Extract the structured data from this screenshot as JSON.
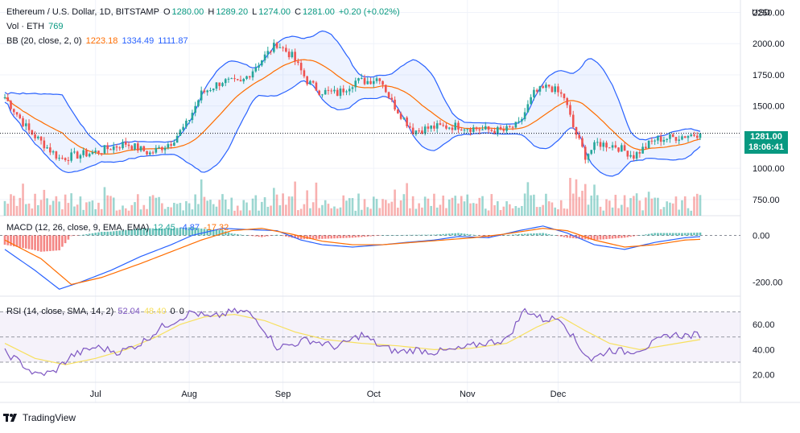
{
  "header": {
    "symbol": "Ethereum / U.S. Dollar, 1D, BITSTAMP",
    "open_label": "O",
    "open": "1280.00",
    "high_label": "H",
    "high": "1289.20",
    "low_label": "L",
    "low": "1274.00",
    "close_label": "C",
    "close": "1281.00",
    "change": "+0.20 (+0.02%)"
  },
  "volume_legend": {
    "label": "Vol · ETH",
    "value": "769"
  },
  "bb_legend": {
    "label": "BB (20, close, 2, 0)",
    "basis": "1223.18",
    "upper": "1334.49",
    "lower": "1111.87"
  },
  "macd_legend": {
    "label": "MACD (12, 26, close, 9, EMA, EMA)",
    "hist": "12.45",
    "macd": "-4.87",
    "signal": "-17.32"
  },
  "rsi_legend": {
    "label": "RSI (14, close, SMA, 14, 2)",
    "rsi": "52.04",
    "ma": "48.40",
    "v1": "0",
    "v2": "0"
  },
  "currency": "USD",
  "price_badge": {
    "price": "1281.00",
    "countdown": "18:06:41"
  },
  "branding": {
    "name": "TradingView"
  },
  "colors": {
    "up": "#26a69a",
    "down": "#ef5350",
    "bb_band": "#2962ff",
    "bb_basis": "#ff6d00",
    "rsi_line": "#7e57c2",
    "rsi_ma": "#f7e05f",
    "accent": "#089981"
  },
  "chart_data": [
    {
      "type": "candlestick",
      "title": "Ethereum / U.S. Dollar, 1D, BITSTAMP",
      "x_tick_labels": [
        "Jul",
        "Aug",
        "Sep",
        "Oct",
        "Nov",
        "Dec"
      ],
      "y_ticks": [
        "2250.00",
        "2000.00",
        "1750.00",
        "1500.00",
        "1250.00",
        "1000.00",
        "750.00"
      ],
      "ylim": [
        620,
        2350
      ],
      "close_path": [
        [
          0,
          1570
        ],
        [
          8,
          1300
        ],
        [
          18,
          1080
        ],
        [
          30,
          1130
        ],
        [
          40,
          1200
        ],
        [
          48,
          1120
        ],
        [
          55,
          1210
        ],
        [
          60,
          1350
        ],
        [
          65,
          1600
        ],
        [
          72,
          1700
        ],
        [
          78,
          1680
        ],
        [
          86,
          1900
        ],
        [
          90,
          2000
        ],
        [
          95,
          1900
        ],
        [
          100,
          1700
        ],
        [
          104,
          1620
        ],
        [
          110,
          1600
        ],
        [
          116,
          1700
        ],
        [
          120,
          1700
        ],
        [
          124,
          1730
        ],
        [
          128,
          1530
        ],
        [
          135,
          1300
        ],
        [
          142,
          1330
        ],
        [
          150,
          1340
        ],
        [
          158,
          1310
        ],
        [
          165,
          1300
        ],
        [
          170,
          1350
        ],
        [
          175,
          1600
        ],
        [
          180,
          1660
        ],
        [
          185,
          1570
        ],
        [
          188,
          1330
        ],
        [
          192,
          1100
        ],
        [
          196,
          1200
        ],
        [
          202,
          1180
        ],
        [
          208,
          1100
        ],
        [
          215,
          1230
        ],
        [
          222,
          1250
        ],
        [
          230,
          1281
        ]
      ],
      "series": [
        {
          "name": "BB upper",
          "values_ref": "bb_legend.upper"
        },
        {
          "name": "BB basis",
          "values_ref": "bb_legend.basis"
        },
        {
          "name": "BB lower",
          "values_ref": "bb_legend.lower"
        }
      ]
    },
    {
      "type": "bar",
      "title": "Vol · ETH",
      "note": "daily volume bars at bottom of price pane, colored by candle direction"
    },
    {
      "type": "line",
      "title": "MACD (12, 26, close, 9, EMA, EMA)",
      "y_ticks": [
        "0.00",
        "-200.00"
      ],
      "ylim": [
        -260,
        60
      ],
      "macd_path": [
        [
          0,
          -60
        ],
        [
          10,
          -150
        ],
        [
          18,
          -230
        ],
        [
          25,
          -200
        ],
        [
          35,
          -150
        ],
        [
          45,
          -90
        ],
        [
          55,
          -40
        ],
        [
          62,
          0
        ],
        [
          72,
          30
        ],
        [
          80,
          25
        ],
        [
          90,
          20
        ],
        [
          98,
          -20
        ],
        [
          105,
          -40
        ],
        [
          115,
          -50
        ],
        [
          125,
          -40
        ],
        [
          133,
          -30
        ],
        [
          142,
          -20
        ],
        [
          150,
          -5
        ],
        [
          160,
          -10
        ],
        [
          170,
          20
        ],
        [
          178,
          40
        ],
        [
          186,
          10
        ],
        [
          195,
          -40
        ],
        [
          205,
          -60
        ],
        [
          215,
          -30
        ],
        [
          225,
          -10
        ],
        [
          230,
          -5
        ]
      ],
      "signal_path": [
        [
          0,
          -20
        ],
        [
          12,
          -100
        ],
        [
          22,
          -210
        ],
        [
          32,
          -180
        ],
        [
          45,
          -120
        ],
        [
          55,
          -70
        ],
        [
          65,
          -20
        ],
        [
          75,
          20
        ],
        [
          85,
          30
        ],
        [
          95,
          5
        ],
        [
          105,
          -25
        ],
        [
          115,
          -40
        ],
        [
          125,
          -40
        ],
        [
          135,
          -30
        ],
        [
          145,
          -20
        ],
        [
          155,
          -10
        ],
        [
          165,
          5
        ],
        [
          178,
          30
        ],
        [
          186,
          20
        ],
        [
          195,
          -20
        ],
        [
          205,
          -50
        ],
        [
          215,
          -40
        ],
        [
          225,
          -20
        ],
        [
          230,
          -17
        ]
      ]
    },
    {
      "type": "line",
      "title": "RSI (14, close, SMA, 14, 2)",
      "y_ticks": [
        "60.00",
        "40.00",
        "20.00"
      ],
      "ylim": [
        14,
        78
      ],
      "bands": [
        70,
        30
      ],
      "rsi_path": [
        [
          0,
          38
        ],
        [
          5,
          30
        ],
        [
          10,
          20
        ],
        [
          16,
          22
        ],
        [
          22,
          35
        ],
        [
          30,
          42
        ],
        [
          38,
          38
        ],
        [
          45,
          45
        ],
        [
          52,
          58
        ],
        [
          58,
          65
        ],
        [
          62,
          70
        ],
        [
          68,
          65
        ],
        [
          75,
          70
        ],
        [
          80,
          70
        ],
        [
          84,
          62
        ],
        [
          90,
          42
        ],
        [
          95,
          44
        ],
        [
          100,
          48
        ],
        [
          110,
          42
        ],
        [
          118,
          52
        ],
        [
          124,
          43
        ],
        [
          130,
          38
        ],
        [
          136,
          40
        ],
        [
          142,
          38
        ],
        [
          150,
          40
        ],
        [
          158,
          45
        ],
        [
          166,
          48
        ],
        [
          172,
          72
        ],
        [
          178,
          64
        ],
        [
          184,
          65
        ],
        [
          190,
          42
        ],
        [
          194,
          32
        ],
        [
          200,
          40
        ],
        [
          206,
          38
        ],
        [
          212,
          42
        ],
        [
          220,
          52
        ],
        [
          226,
          51
        ],
        [
          230,
          52
        ]
      ],
      "rsi_ma_path": [
        [
          0,
          45
        ],
        [
          10,
          33
        ],
        [
          20,
          28
        ],
        [
          30,
          33
        ],
        [
          40,
          40
        ],
        [
          50,
          50
        ],
        [
          58,
          60
        ],
        [
          66,
          66
        ],
        [
          76,
          68
        ],
        [
          86,
          63
        ],
        [
          96,
          54
        ],
        [
          106,
          48
        ],
        [
          118,
          45
        ],
        [
          130,
          43
        ],
        [
          142,
          40
        ],
        [
          154,
          41
        ],
        [
          166,
          45
        ],
        [
          176,
          58
        ],
        [
          184,
          66
        ],
        [
          192,
          55
        ],
        [
          200,
          45
        ],
        [
          210,
          40
        ],
        [
          220,
          44
        ],
        [
          230,
          48
        ]
      ]
    }
  ]
}
